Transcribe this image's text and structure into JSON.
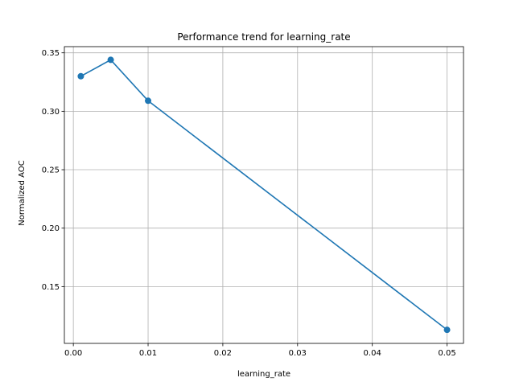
{
  "chart_data": {
    "type": "line",
    "title": "Performance trend for learning_rate",
    "xlabel": "learning_rate",
    "ylabel": "Normalized AOC",
    "x": [
      0.001,
      0.005,
      0.01,
      0.05
    ],
    "series": [
      {
        "values": [
          0.33,
          0.344,
          0.309,
          0.113
        ],
        "color": "#1f77b4",
        "marker": "circle"
      }
    ],
    "xlim": [
      -0.0012,
      0.0522
    ],
    "ylim": [
      0.1014,
      0.3553
    ],
    "x_ticks": [
      0.0,
      0.01,
      0.02,
      0.03,
      0.04,
      0.05
    ],
    "x_tick_labels": [
      "0.00",
      "0.01",
      "0.02",
      "0.03",
      "0.04",
      "0.05"
    ],
    "y_ticks": [
      0.15,
      0.2,
      0.25,
      0.3,
      0.35
    ],
    "y_tick_labels": [
      "0.15",
      "0.20",
      "0.25",
      "0.30",
      "0.35"
    ],
    "grid": true,
    "legend": false,
    "grid_color": "#b0b0b0",
    "line_color": "#1f77b4"
  }
}
